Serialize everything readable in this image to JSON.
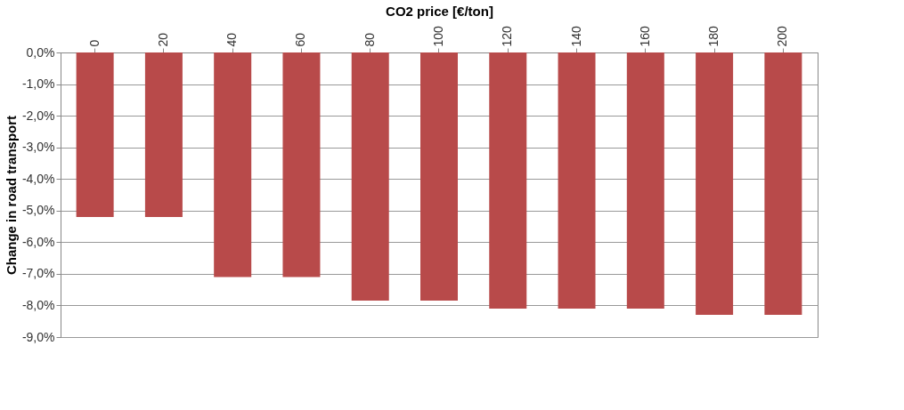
{
  "chart_data": {
    "type": "bar",
    "xlabel": "CO2 price [€/ton]",
    "ylabel": "Change in road transport",
    "categories": [
      "0",
      "20",
      "40",
      "60",
      "80",
      "100",
      "120",
      "140",
      "160",
      "180",
      "200"
    ],
    "values": [
      -5.2,
      -5.2,
      -7.1,
      -7.1,
      -7.85,
      -7.85,
      -8.1,
      -8.1,
      -8.1,
      -8.3,
      -8.3
    ],
    "color": "#b84a4a",
    "ylim": [
      -9,
      0
    ],
    "yticks": [
      {
        "value": 0,
        "label": "0,0%"
      },
      {
        "value": -1,
        "label": "-1,0%"
      },
      {
        "value": -2,
        "label": "-2,0%"
      },
      {
        "value": -3,
        "label": "-3,0%"
      },
      {
        "value": -4,
        "label": "-4,0%"
      },
      {
        "value": -5,
        "label": "-5,0%"
      },
      {
        "value": -6,
        "label": "-6,0%"
      },
      {
        "value": -7,
        "label": "-7,0%"
      },
      {
        "value": -8,
        "label": "-8,0%"
      },
      {
        "value": -9,
        "label": "-9,0%"
      }
    ],
    "grid": "y"
  }
}
